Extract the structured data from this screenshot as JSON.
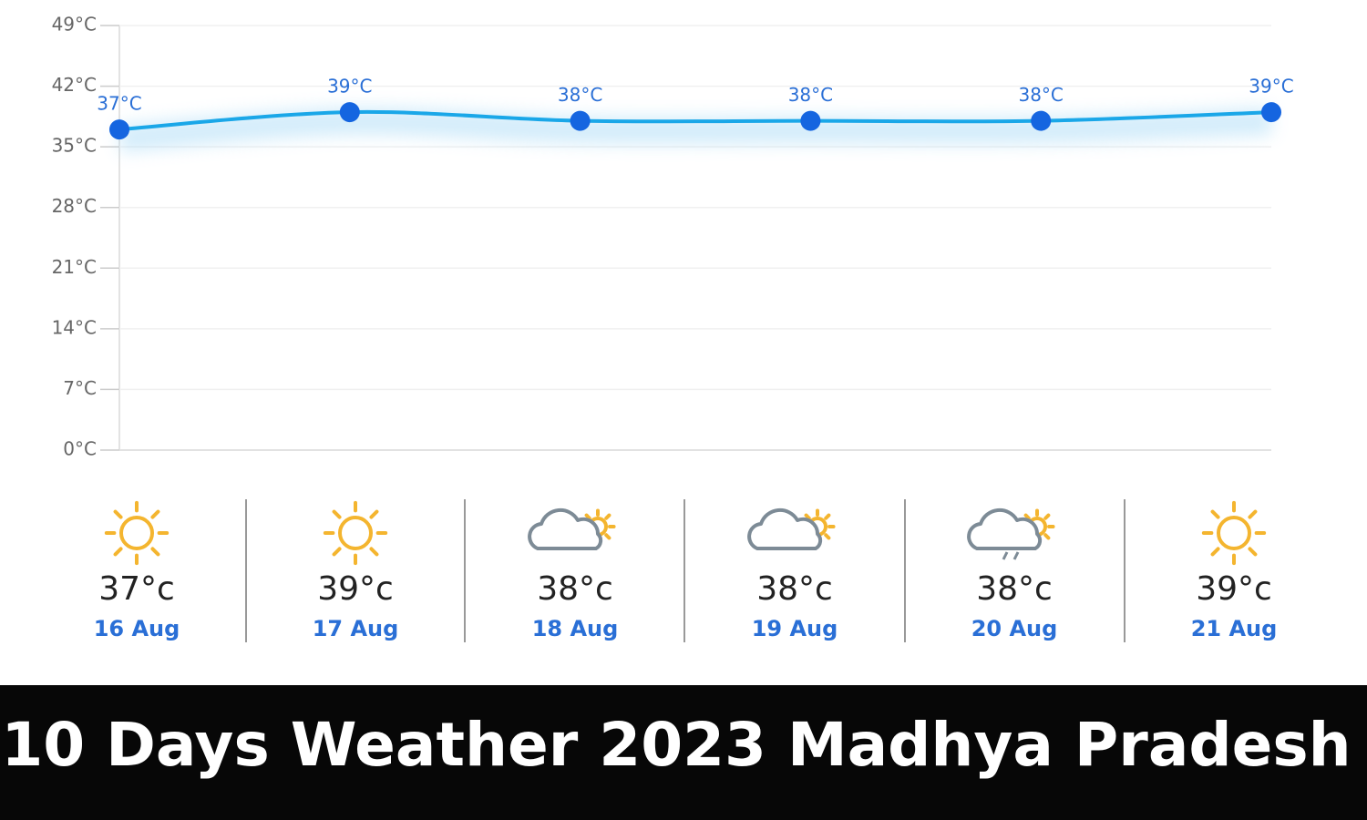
{
  "chart_data": {
    "type": "line",
    "categories": [
      "16 Aug",
      "17 Aug",
      "18 Aug",
      "19 Aug",
      "20 Aug",
      "21 Aug"
    ],
    "series": [
      {
        "color": "#1aa7e8",
        "values": [
          37,
          39,
          38,
          38,
          38,
          39
        ],
        "value_labels": [
          "37°C",
          "39°C",
          "38°C",
          "38°C",
          "38°C",
          "39°C"
        ]
      }
    ],
    "ylim": [
      0,
      49
    ],
    "yticks": [
      {
        "value": 0,
        "label": "0°C"
      },
      {
        "value": 7,
        "label": "7°C"
      },
      {
        "value": 14,
        "label": "14°C"
      },
      {
        "value": 21,
        "label": "21°C"
      },
      {
        "value": 28,
        "label": "28°C"
      },
      {
        "value": 35,
        "label": "35°C"
      },
      {
        "value": 42,
        "label": "42°C"
      },
      {
        "value": 49,
        "label": "49°C"
      }
    ],
    "grid": true
  },
  "forecast": {
    "temps": [
      "37°c",
      "39°c",
      "38°c",
      "38°c",
      "38°c",
      "39°c"
    ],
    "icons": [
      "sun",
      "sun",
      "cloud-sun",
      "cloud-sun",
      "rain-sun",
      "sun"
    ]
  },
  "banner": {
    "title": "10 Days Weather 2023 Madhya Pradesh"
  }
}
